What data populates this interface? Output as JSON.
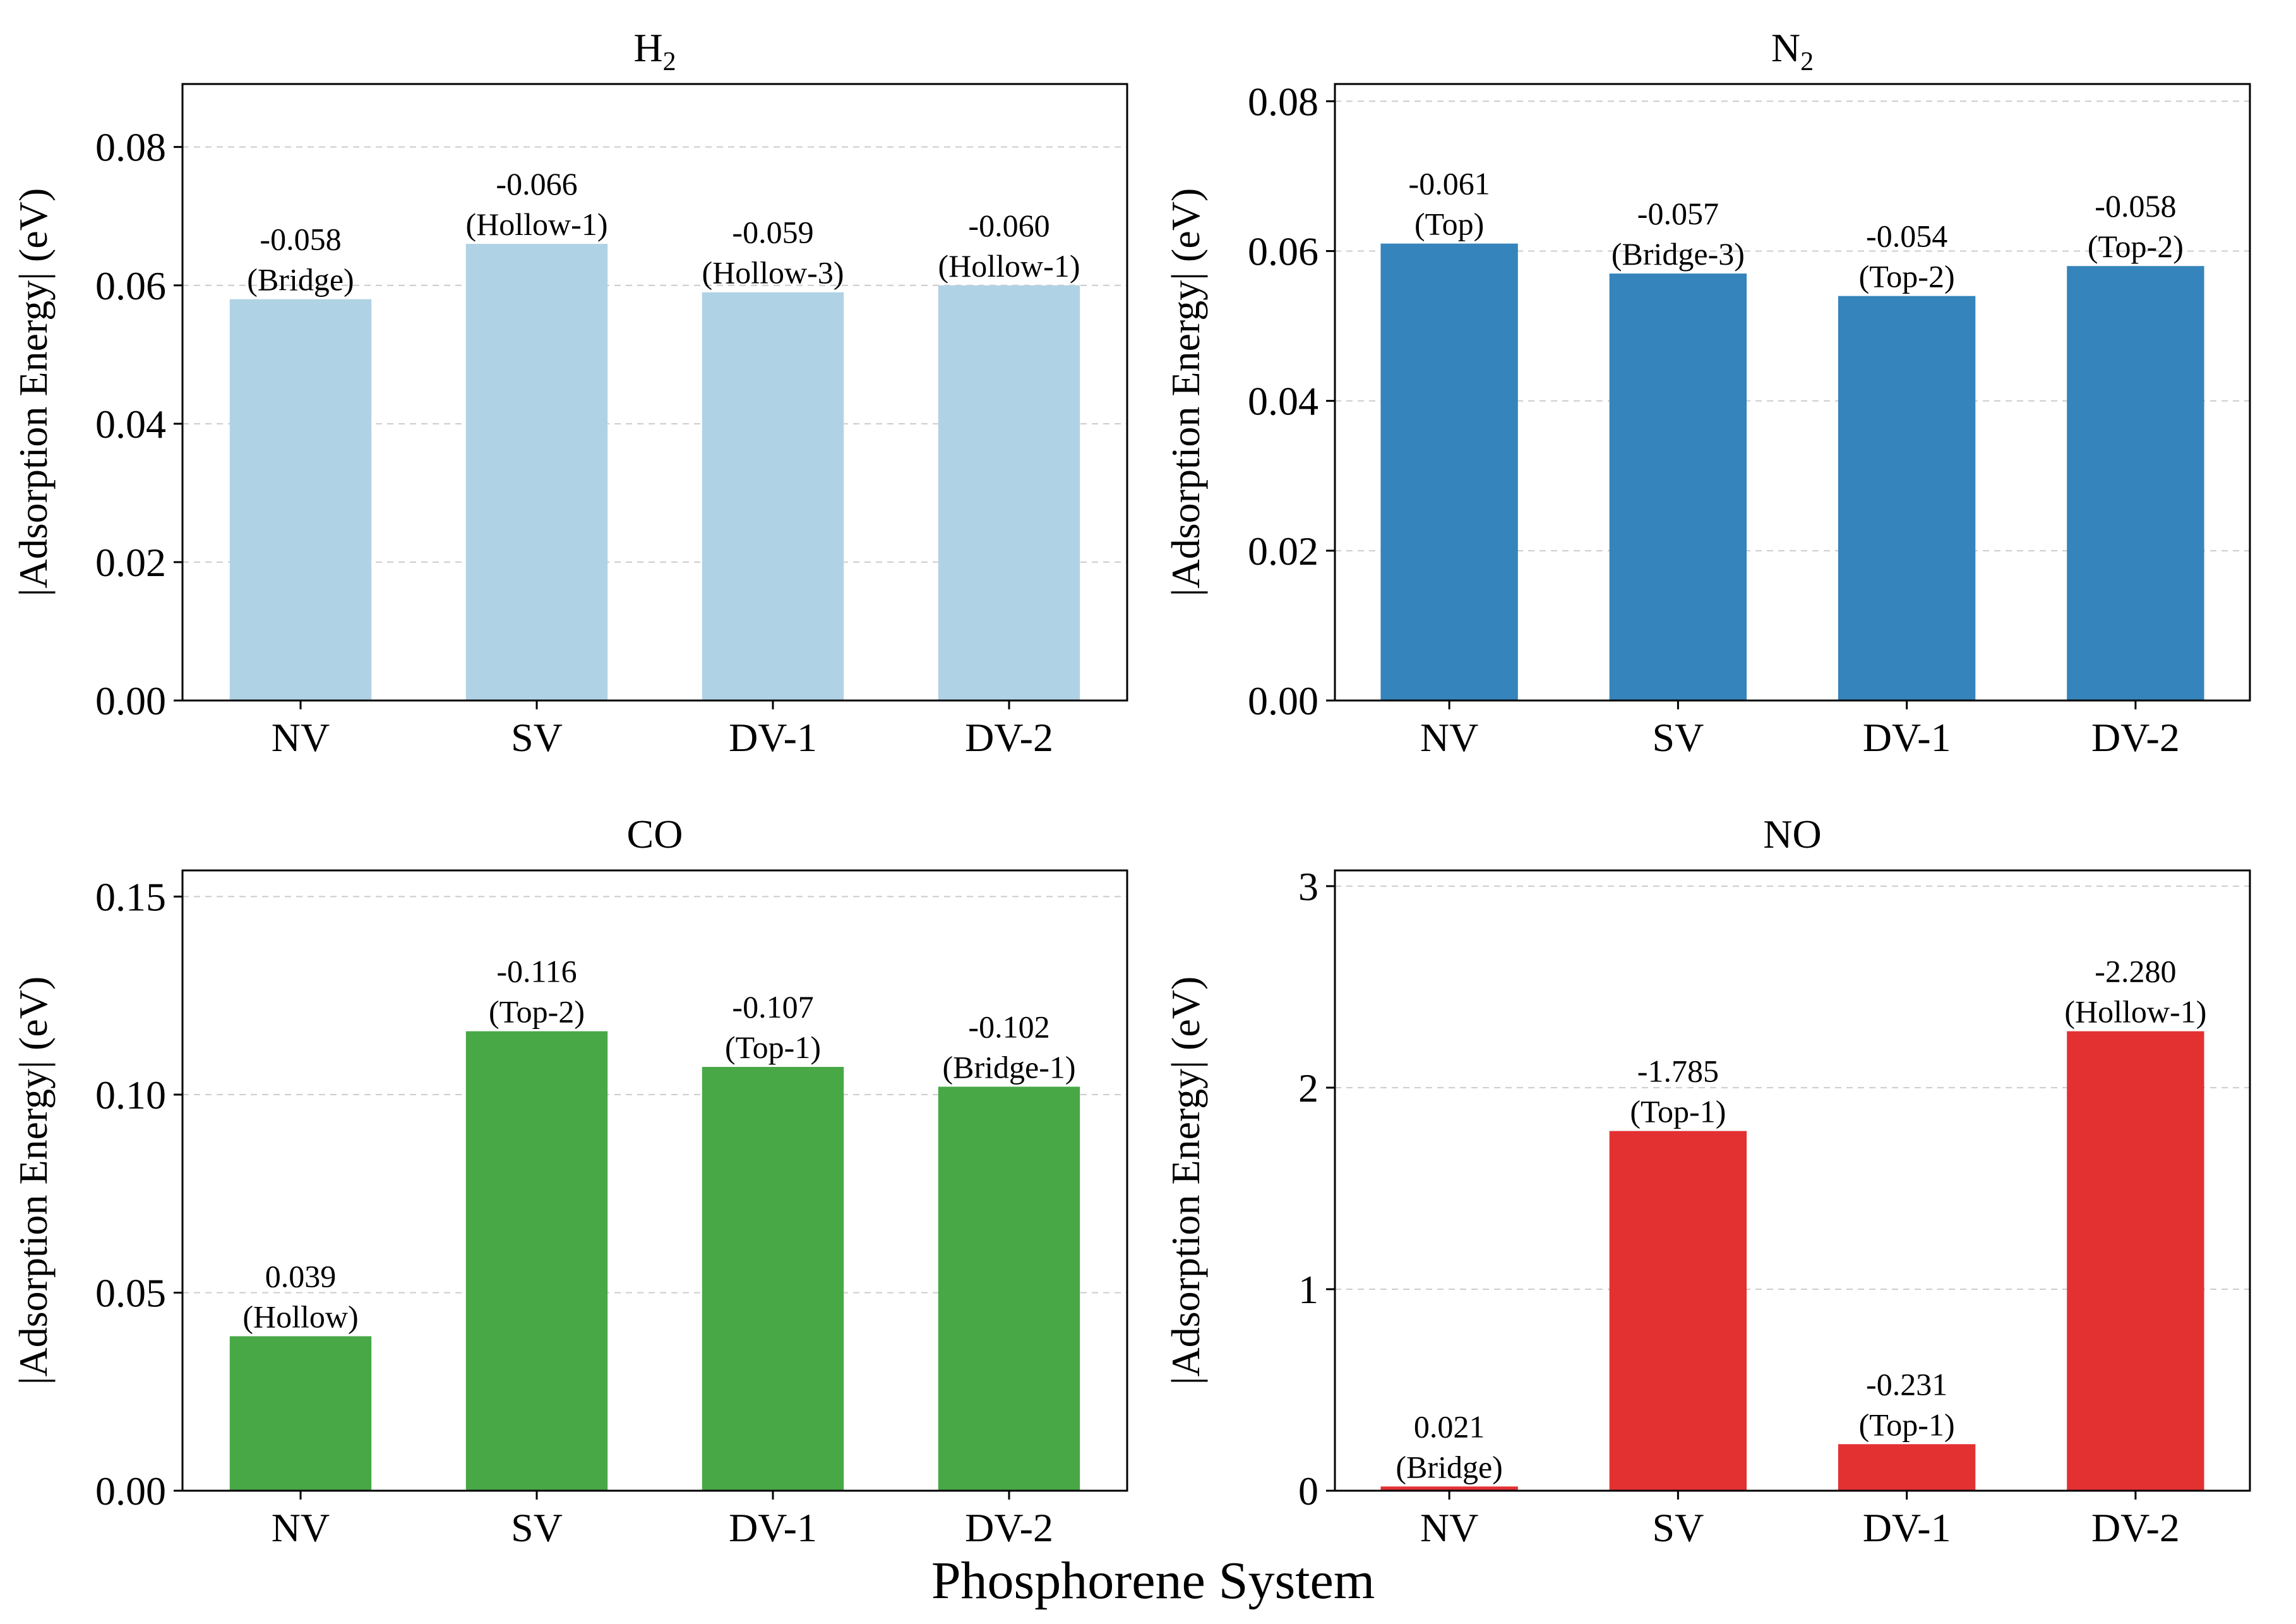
{
  "figure": {
    "xlabel": "Phosphorene System",
    "colors": {
      "axis": "#000000",
      "grid": "#cccccc",
      "background": "#ffffff"
    }
  },
  "chart_data": [
    {
      "type": "bar",
      "title": "H₂",
      "title_base": "H",
      "title_sub": "2",
      "categories": [
        "NV",
        "SV",
        "DV-1",
        "DV-2"
      ],
      "values": [
        0.058,
        0.066,
        0.059,
        0.06
      ],
      "data_labels": [
        "-0.058",
        "-0.066",
        "-0.059",
        "-0.060"
      ],
      "sites": [
        "(Bridge)",
        "(Hollow-1)",
        "(Hollow-3)",
        "(Hollow-1)"
      ],
      "ylabel": "|Adsorption Energy| (eV)",
      "ylim": [
        0,
        0.0891
      ],
      "yticks": [
        0,
        0.02,
        0.04,
        0.06,
        0.08
      ],
      "ytick_labels": [
        "0.00",
        "0.02",
        "0.04",
        "0.06",
        "0.08"
      ],
      "color": "#b0d2e5",
      "grid": true
    },
    {
      "type": "bar",
      "title": "N₂",
      "title_base": "N",
      "title_sub": "2",
      "categories": [
        "NV",
        "SV",
        "DV-1",
        "DV-2"
      ],
      "values": [
        0.061,
        0.057,
        0.054,
        0.058
      ],
      "data_labels": [
        "-0.061",
        "-0.057",
        "-0.054",
        "-0.058"
      ],
      "sites": [
        "(Top)",
        "(Bridge-3)",
        "(Top-2)",
        "(Top-2)"
      ],
      "ylabel": "|Adsorption Energy| (eV)",
      "ylim": [
        0,
        0.0823
      ],
      "yticks": [
        0,
        0.02,
        0.04,
        0.06,
        0.08
      ],
      "ytick_labels": [
        "0.00",
        "0.02",
        "0.04",
        "0.06",
        "0.08"
      ],
      "color": "#3584bc",
      "grid": true
    },
    {
      "type": "bar",
      "title": "CO",
      "title_base": "CO",
      "title_sub": "",
      "categories": [
        "NV",
        "SV",
        "DV-1",
        "DV-2"
      ],
      "values": [
        0.039,
        0.116,
        0.107,
        0.102
      ],
      "data_labels": [
        "0.039",
        "-0.116",
        "-0.107",
        "-0.102"
      ],
      "sites": [
        "(Hollow)",
        "(Top-2)",
        "(Top-1)",
        "(Bridge-1)"
      ],
      "ylabel": "|Adsorption Energy| (eV)",
      "ylim": [
        0,
        0.1566
      ],
      "yticks": [
        0,
        0.05,
        0.1,
        0.15
      ],
      "ytick_labels": [
        "0.00",
        "0.05",
        "0.10",
        "0.15"
      ],
      "color": "#48a846",
      "grid": true
    },
    {
      "type": "bar",
      "title": "NO",
      "title_base": "NO",
      "title_sub": "",
      "categories": [
        "NV",
        "SV",
        "DV-1",
        "DV-2"
      ],
      "values": [
        0.021,
        1.785,
        0.231,
        2.28
      ],
      "data_labels": [
        "0.021",
        "-1.785",
        "-0.231",
        "-2.280"
      ],
      "sites": [
        "(Bridge)",
        "(Top-1)",
        "(Top-1)",
        "(Hollow-1)"
      ],
      "ylabel": "|Adsorption Energy| (eV)",
      "ylim": [
        0,
        3.078
      ],
      "yticks": [
        0,
        1,
        2,
        3
      ],
      "ytick_labels": [
        "0",
        "1",
        "2",
        "3"
      ],
      "color": "#e33132",
      "grid": true
    }
  ]
}
